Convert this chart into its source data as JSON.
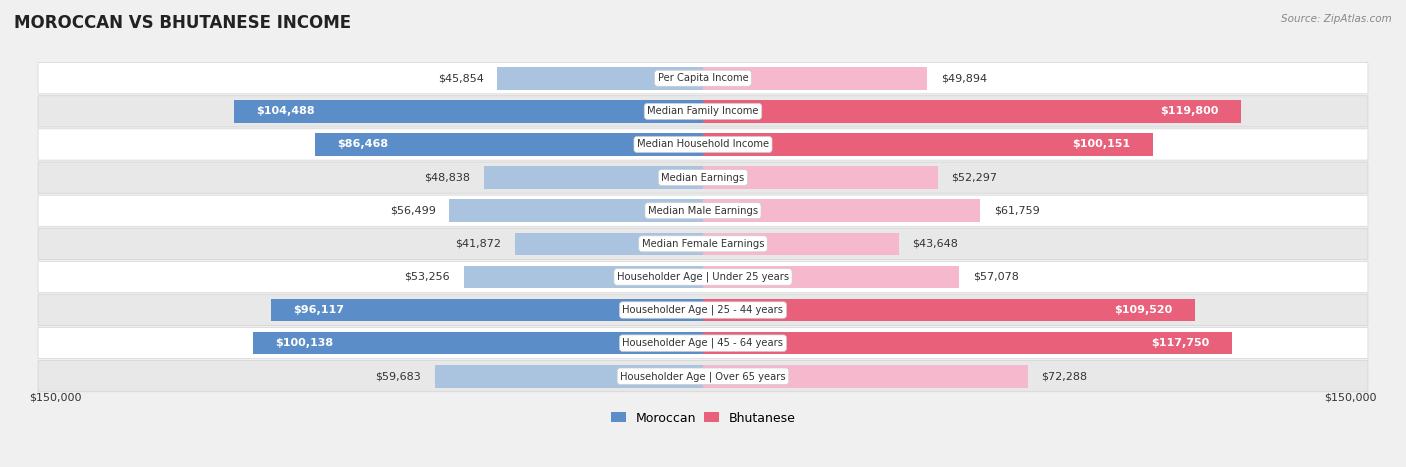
{
  "title": "MOROCCAN VS BHUTANESE INCOME",
  "source": "Source: ZipAtlas.com",
  "max_value": 150000,
  "categories": [
    "Per Capita Income",
    "Median Family Income",
    "Median Household Income",
    "Median Earnings",
    "Median Male Earnings",
    "Median Female Earnings",
    "Householder Age | Under 25 years",
    "Householder Age | 25 - 44 years",
    "Householder Age | 45 - 64 years",
    "Householder Age | Over 65 years"
  ],
  "moroccan_values": [
    45854,
    104488,
    86468,
    48838,
    56499,
    41872,
    53256,
    96117,
    100138,
    59683
  ],
  "bhutanese_values": [
    49894,
    119800,
    100151,
    52297,
    61759,
    43648,
    57078,
    109520,
    117750,
    72288
  ],
  "moroccan_color_light": "#aac4e0",
  "moroccan_color_dark": "#5b8ec9",
  "bhutanese_color_light": "#f5b8cc",
  "bhutanese_color_dark": "#e8607a",
  "moroccan_labels": [
    "$45,854",
    "$104,488",
    "$86,468",
    "$48,838",
    "$56,499",
    "$41,872",
    "$53,256",
    "$96,117",
    "$100,138",
    "$59,683"
  ],
  "bhutanese_labels": [
    "$49,894",
    "$119,800",
    "$100,151",
    "$52,297",
    "$61,759",
    "$43,648",
    "$57,078",
    "$109,520",
    "$117,750",
    "$72,288"
  ],
  "moroccan_inside": [
    false,
    true,
    true,
    false,
    false,
    false,
    false,
    true,
    true,
    false
  ],
  "bhutanese_inside": [
    false,
    true,
    true,
    false,
    false,
    false,
    false,
    true,
    true,
    false
  ],
  "moroccan_dark": [
    false,
    true,
    true,
    false,
    false,
    false,
    false,
    true,
    true,
    false
  ],
  "bhutanese_dark": [
    false,
    true,
    true,
    false,
    false,
    false,
    false,
    true,
    true,
    false
  ],
  "background_color": "#f0f0f0",
  "row_even_color": "#ffffff",
  "row_odd_color": "#e8e8e8",
  "label_fontsize": 8.0,
  "title_fontsize": 12,
  "source_fontsize": 7.5,
  "axis_label": "$150,000",
  "legend_moroccan": "Moroccan",
  "legend_bhutanese": "Bhutanese"
}
